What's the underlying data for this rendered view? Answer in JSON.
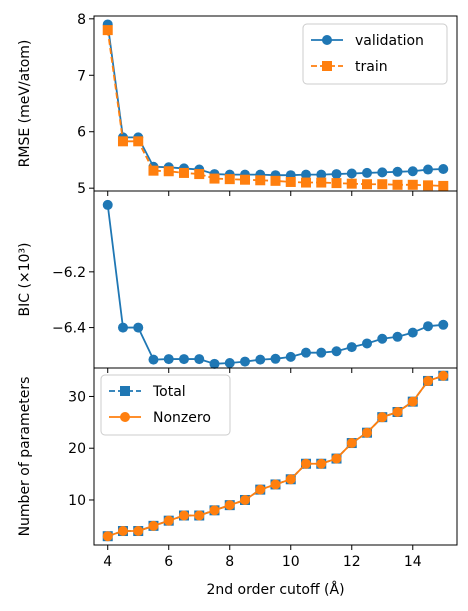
{
  "chart_data": [
    {
      "type": "line",
      "ylabel": "RMSE (meV/atom)",
      "ylim": [
        4.95,
        8.05
      ],
      "yticks": [
        5,
        6,
        7,
        8
      ],
      "ytick_labels": [
        "5",
        "6",
        "7",
        "8"
      ],
      "legend": "top-right",
      "grid": false,
      "x": [
        4,
        4.5,
        5,
        5.5,
        6,
        6.5,
        7,
        7.5,
        8,
        8.5,
        9,
        9.5,
        10,
        10.5,
        11,
        11.5,
        12,
        12.5,
        13,
        13.5,
        14,
        14.5,
        15
      ],
      "series": [
        {
          "name": "validation",
          "color": "#1f77b4",
          "marker": "circle",
          "linestyle": "solid",
          "values": [
            7.9,
            5.9,
            5.9,
            5.38,
            5.37,
            5.35,
            5.33,
            5.25,
            5.24,
            5.24,
            5.24,
            5.23,
            5.23,
            5.24,
            5.24,
            5.25,
            5.26,
            5.27,
            5.28,
            5.29,
            5.3,
            5.33,
            5.34
          ]
        },
        {
          "name": "train",
          "color": "#ff7f0e",
          "marker": "square",
          "linestyle": "dashed",
          "values": [
            7.8,
            5.83,
            5.83,
            5.31,
            5.3,
            5.27,
            5.25,
            5.17,
            5.16,
            5.15,
            5.14,
            5.13,
            5.11,
            5.1,
            5.1,
            5.09,
            5.08,
            5.07,
            5.07,
            5.06,
            5.06,
            5.05,
            5.04
          ]
        }
      ]
    },
    {
      "type": "line",
      "ylabel": "BIC (×10³)",
      "ylim": [
        -6.545,
        -5.91
      ],
      "yticks": [
        -6.2,
        -6.4
      ],
      "ytick_labels": [
        "−6.2",
        "−6.4"
      ],
      "grid": false,
      "x": [
        4,
        4.5,
        5,
        5.5,
        6,
        6.5,
        7,
        7.5,
        8,
        8.5,
        9,
        9.5,
        10,
        10.5,
        11,
        11.5,
        12,
        12.5,
        13,
        13.5,
        14,
        14.5,
        15
      ],
      "series": [
        {
          "color": "#1f77b4",
          "marker": "circle",
          "linestyle": "solid",
          "values": [
            -5.96,
            -6.4,
            -6.4,
            -6.515,
            -6.513,
            -6.513,
            -6.513,
            -6.53,
            -6.527,
            -6.522,
            -6.515,
            -6.512,
            -6.505,
            -6.49,
            -6.49,
            -6.485,
            -6.47,
            -6.457,
            -6.44,
            -6.433,
            -6.418,
            -6.395,
            -6.39
          ]
        }
      ]
    },
    {
      "type": "line",
      "xlabel": "2nd order cutoff (Å)",
      "ylabel": "Number of parameters",
      "xlim": [
        3.55,
        15.45
      ],
      "ylim": [
        1.3,
        35.5
      ],
      "xticks": [
        4,
        6,
        8,
        10,
        12,
        14
      ],
      "xtick_labels": [
        "4",
        "6",
        "8",
        "10",
        "12",
        "14"
      ],
      "yticks": [
        10,
        20,
        30
      ],
      "ytick_labels": [
        "10",
        "20",
        "30"
      ],
      "legend": "top-left",
      "grid": false,
      "x": [
        4,
        4.5,
        5,
        5.5,
        6,
        6.5,
        7,
        7.5,
        8,
        8.5,
        9,
        9.5,
        10,
        10.5,
        11,
        11.5,
        12,
        12.5,
        13,
        13.5,
        14,
        14.5,
        15
      ],
      "series": [
        {
          "name": "Total",
          "color": "#1f77b4",
          "marker": "square",
          "linestyle": "dashed",
          "values": [
            3,
            4,
            4,
            5,
            6,
            7,
            7,
            8,
            9,
            10,
            12,
            13,
            14,
            17,
            17,
            18,
            21,
            23,
            26,
            27,
            29,
            33,
            34
          ]
        },
        {
          "name": "Nonzero",
          "color": "#ff7f0e",
          "marker": "circle",
          "linestyle": "solid",
          "values": [
            3,
            4,
            4,
            5,
            6,
            7,
            7,
            8,
            9,
            10,
            12,
            13,
            14,
            17,
            17,
            18,
            21,
            23,
            26,
            27,
            29,
            33,
            34
          ]
        }
      ]
    }
  ]
}
